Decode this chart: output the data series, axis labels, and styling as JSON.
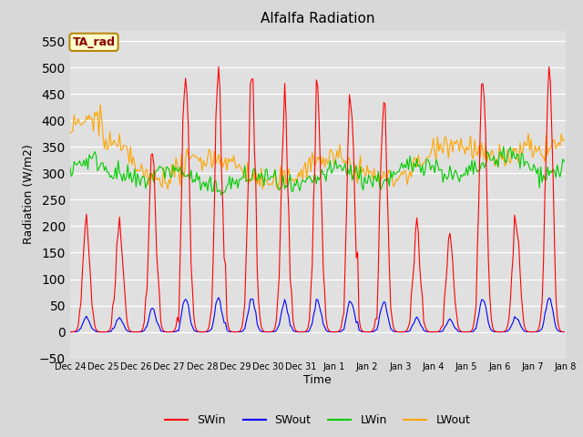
{
  "title": "Alfalfa Radiation",
  "xlabel": "Time",
  "ylabel": "Radiation (W/m2)",
  "ylim": [
    -50,
    570
  ],
  "yticks": [
    -50,
    0,
    50,
    100,
    150,
    200,
    250,
    300,
    350,
    400,
    450,
    500,
    550
  ],
  "fig_bg_color": "#d8d8d8",
  "plot_bg_color": "#e0e0e0",
  "series_colors": {
    "SWin": "#ff0000",
    "SWout": "#0000ff",
    "LWin": "#00cc00",
    "LWout": "#ffa500"
  },
  "annotation_text": "TA_rad",
  "annotation_color": "#8b0000",
  "annotation_bg": "#ffffcc",
  "tick_labels": [
    "Dec 24",
    "Dec 25",
    "Dec 26",
    "Dec 27",
    "Dec 28",
    "Dec 29",
    "Dec 30",
    "Dec 31",
    "Jan 1",
    "Jan 2",
    "Jan 3",
    "Jan 4",
    "Jan 5",
    "Jan 6",
    "Jan 7",
    "Jan 8"
  ],
  "n_days": 15,
  "swin_peaks": [
    220,
    215,
    345,
    500,
    495,
    505,
    430,
    450,
    460,
    450,
    195,
    185,
    490,
    215,
    520
  ],
  "swout_ratio": 0.13,
  "lwin_base": 295,
  "lwout_base": 320,
  "lwin_day_mod": [
    15,
    10,
    0,
    -5,
    -10,
    -15,
    -10,
    -5,
    0,
    5,
    10,
    10,
    20,
    25,
    20
  ],
  "lwout_day_mod": [
    60,
    15,
    -5,
    -5,
    -15,
    -15,
    -15,
    -15,
    -15,
    -5,
    -5,
    15,
    25,
    35,
    10
  ]
}
